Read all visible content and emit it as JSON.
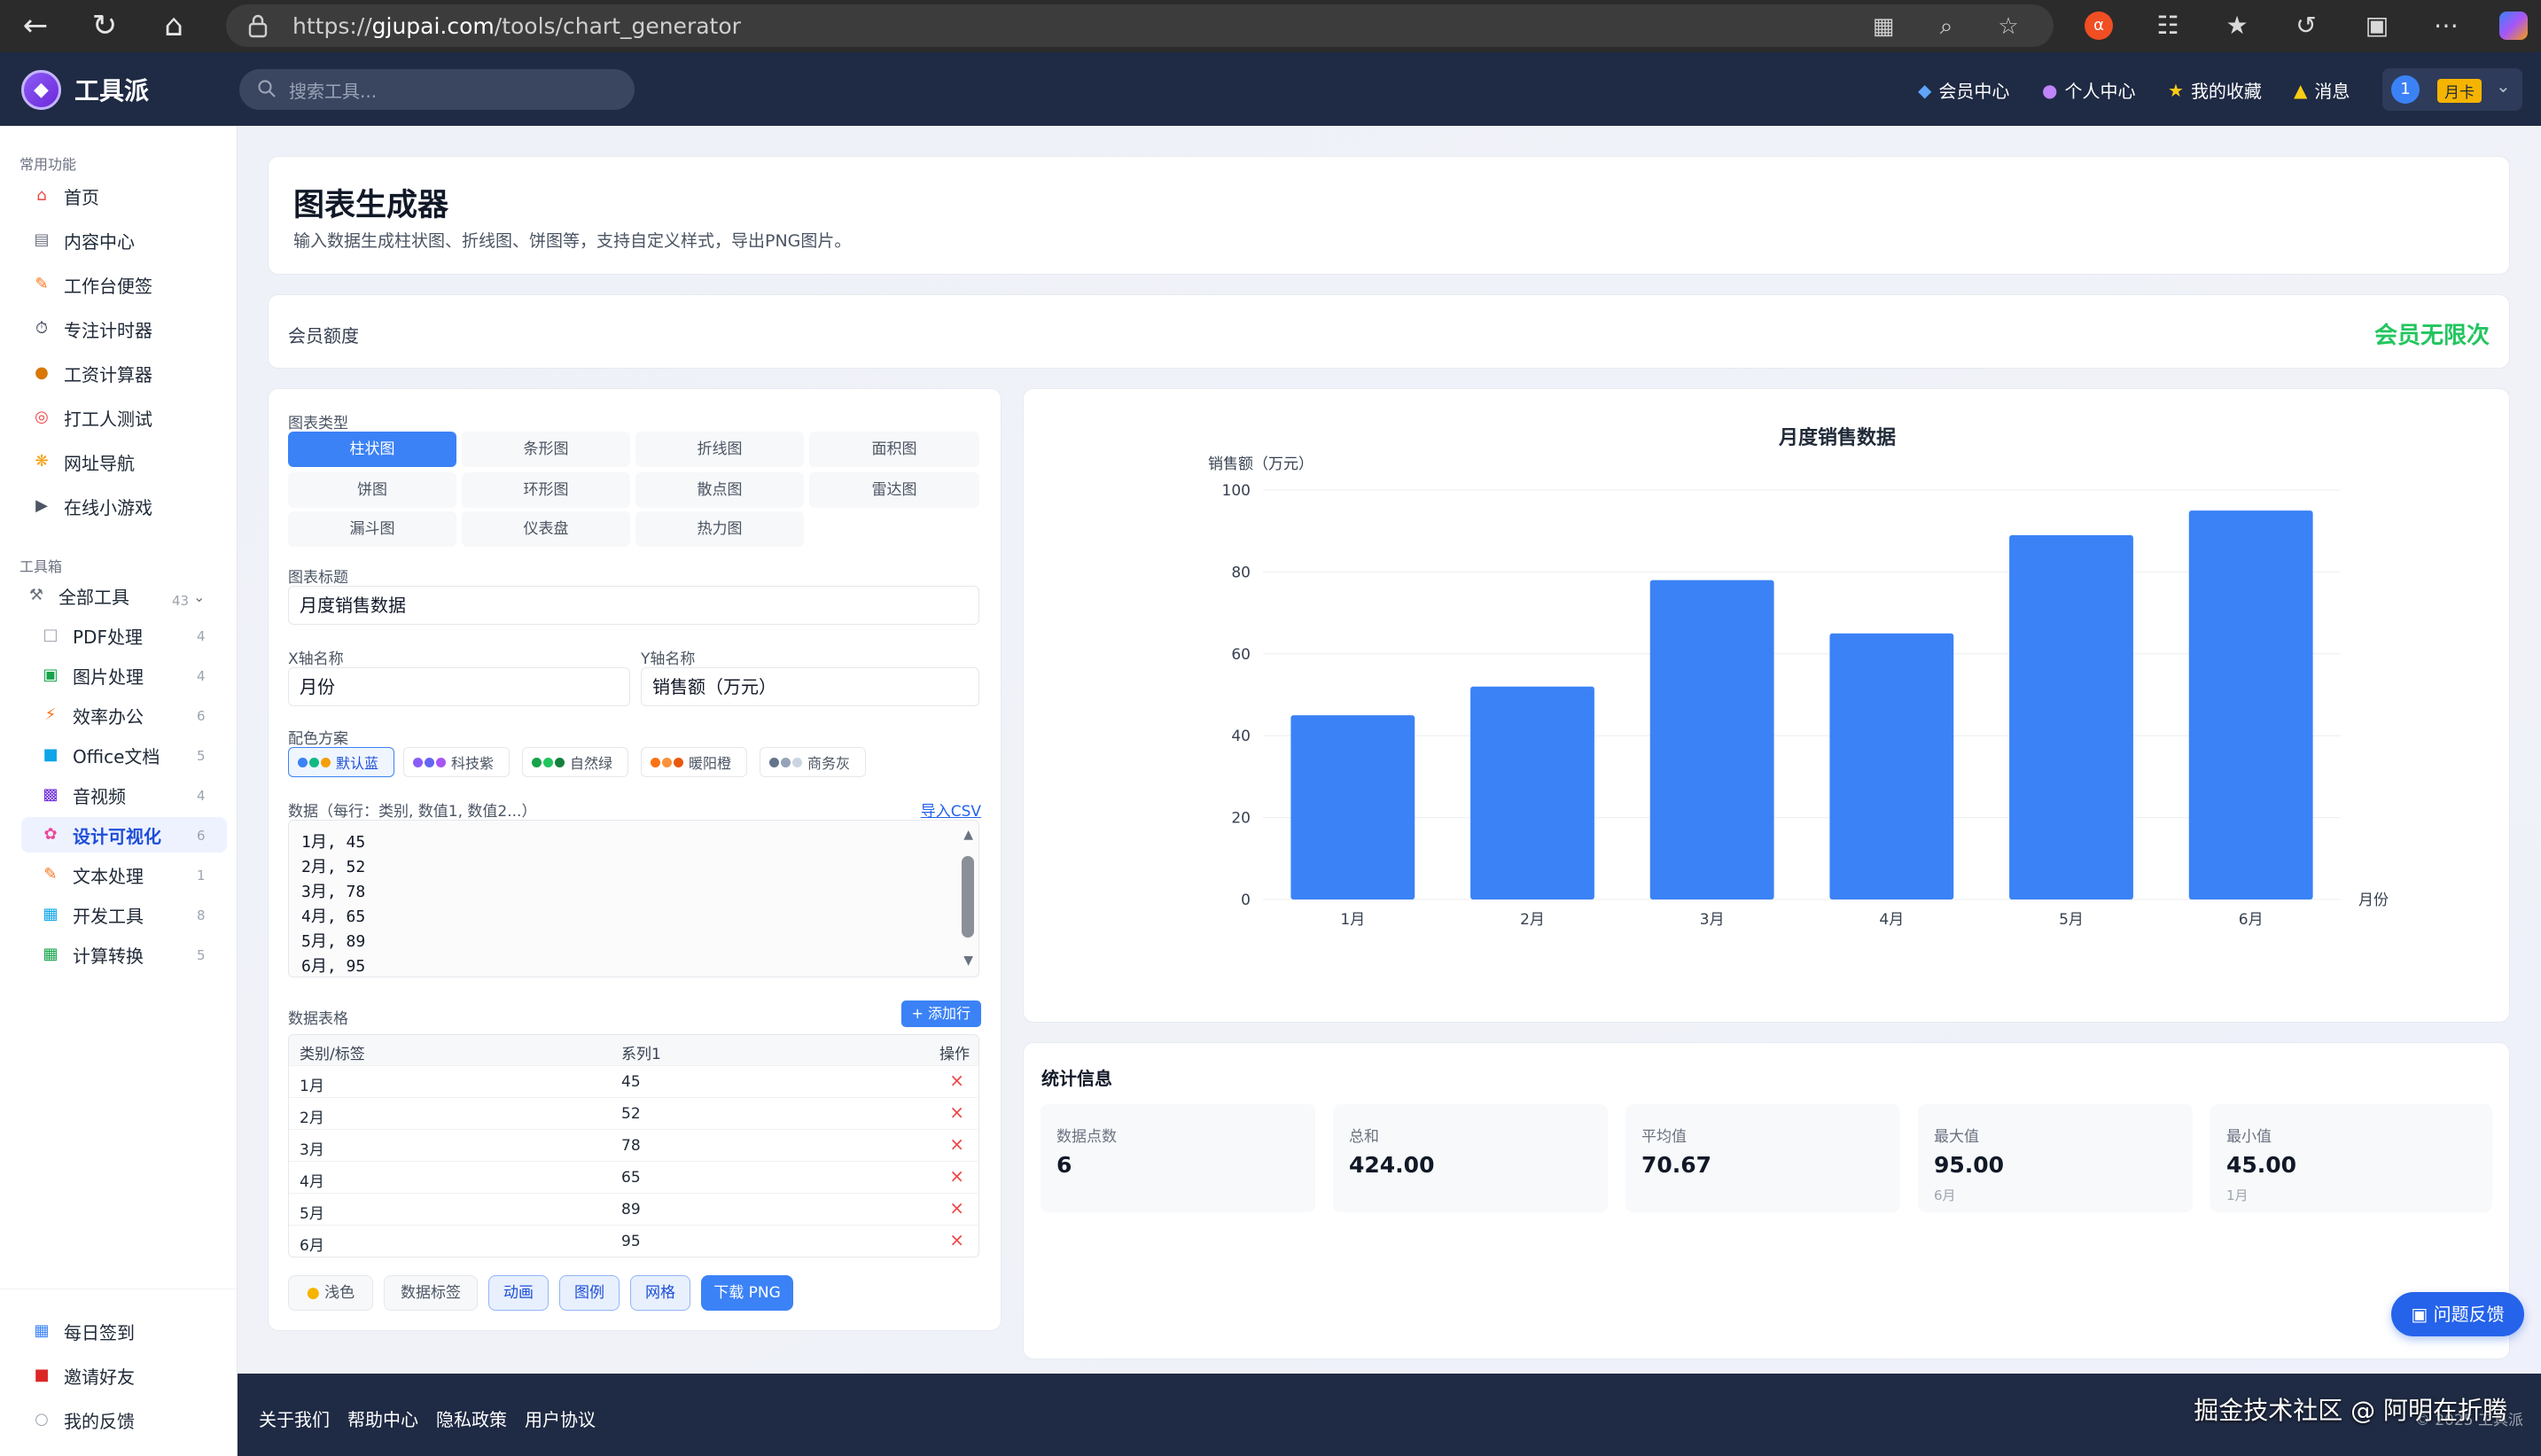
{
  "browser": {
    "url_prefix": "https://",
    "url_host": "gjupai.com",
    "url_path": "/tools/chart_generator"
  },
  "app": {
    "brand": "工具派",
    "search_placeholder": "搜索工具...",
    "nav": {
      "member_center": "会员中心",
      "personal_center": "个人中心",
      "favorites": "我的收藏",
      "messages": "消息"
    },
    "user_badge": "1",
    "user_card": "月卡"
  },
  "sidebar": {
    "common_title": "常用功能",
    "common": [
      {
        "label": "首页",
        "icon": "home-icon"
      },
      {
        "label": "内容中心",
        "icon": "content-icon"
      },
      {
        "label": "工作台便签",
        "icon": "note-icon"
      },
      {
        "label": "专注计时器",
        "icon": "timer-icon"
      },
      {
        "label": "工资计算器",
        "icon": "money-icon"
      },
      {
        "label": "打工人测试",
        "icon": "target-icon"
      },
      {
        "label": "网址导航",
        "icon": "compass-icon"
      },
      {
        "label": "在线小游戏",
        "icon": "gamepad-icon"
      }
    ],
    "toolbox_title": "工具箱",
    "all_tools": {
      "label": "全部工具",
      "count": "43"
    },
    "tools": [
      {
        "label": "PDF处理",
        "count": "4"
      },
      {
        "label": "图片处理",
        "count": "4"
      },
      {
        "label": "效率办公",
        "count": "6"
      },
      {
        "label": "Office文档",
        "count": "5"
      },
      {
        "label": "音视频",
        "count": "4"
      },
      {
        "label": "设计可视化",
        "count": "6"
      },
      {
        "label": "文本处理",
        "count": "1"
      },
      {
        "label": "开发工具",
        "count": "8"
      },
      {
        "label": "计算转换",
        "count": "5"
      }
    ],
    "bottom": [
      {
        "label": "每日签到"
      },
      {
        "label": "邀请好友"
      },
      {
        "label": "我的反馈"
      }
    ]
  },
  "page": {
    "title": "图表生成器",
    "desc": "输入数据生成柱状图、折线图、饼图等，支持自定义样式，导出PNG图片。",
    "quota_label": "会员额度",
    "quota_value": "会员无限次"
  },
  "form": {
    "type_label": "图表类型",
    "types": [
      "柱状图",
      "条形图",
      "折线图",
      "面积图",
      "饼图",
      "环形图",
      "散点图",
      "雷达图",
      "漏斗图",
      "仪表盘",
      "热力图"
    ],
    "title_label": "图表标题",
    "title_value": "月度销售数据",
    "x_label": "X轴名称",
    "x_value": "月份",
    "y_label": "Y轴名称",
    "y_value": "销售额（万元）",
    "scheme_label": "配色方案",
    "schemes": [
      {
        "label": "默认蓝",
        "colors": [
          "#3b82f6",
          "#10b981",
          "#f59e0b"
        ]
      },
      {
        "label": "科技紫",
        "colors": [
          "#8b5cf6",
          "#6366f1",
          "#a855f7"
        ]
      },
      {
        "label": "自然绿",
        "colors": [
          "#16a34a",
          "#22c55e",
          "#15803d"
        ]
      },
      {
        "label": "暖阳橙",
        "colors": [
          "#f97316",
          "#fb923c",
          "#ea580c"
        ]
      },
      {
        "label": "商务灰",
        "colors": [
          "#64748b",
          "#94a3b8",
          "#cbd5e1"
        ]
      }
    ],
    "data_label": "数据（每行：类别, 数值1, 数值2...）",
    "import_csv": "导入CSV",
    "data_lines": [
      "1月, 45",
      "2月, 52",
      "3月, 78",
      "4月, 65",
      "5月, 89",
      "6月, 95"
    ],
    "table_label": "数据表格",
    "add_row": "+ 添加行",
    "table_headers": [
      "类别/标签",
      "系列1",
      "操作"
    ],
    "table_rows": [
      {
        "cat": "1月",
        "val": "45"
      },
      {
        "cat": "2月",
        "val": "52"
      },
      {
        "cat": "3月",
        "val": "78"
      },
      {
        "cat": "4月",
        "val": "65"
      },
      {
        "cat": "5月",
        "val": "89"
      },
      {
        "cat": "6月",
        "val": "95"
      }
    ],
    "buttons": {
      "light": "浅色",
      "data_label": "数据标签",
      "animation": "动画",
      "legend": "图例",
      "grid": "网格",
      "download": "下载 PNG"
    }
  },
  "chart_data": {
    "type": "bar",
    "title": "月度销售数据",
    "ylabel": "销售额（万元）",
    "xlabel": "月份",
    "categories": [
      "1月",
      "2月",
      "3月",
      "4月",
      "5月",
      "6月"
    ],
    "values": [
      45,
      52,
      78,
      65,
      89,
      95
    ],
    "ylim": [
      0,
      100
    ],
    "yticks": [
      "0",
      "20",
      "40",
      "60",
      "80",
      "100"
    ],
    "color": "#3b82f6",
    "grid": true
  },
  "stats": {
    "title": "统计信息",
    "items": [
      {
        "k": "数据点数",
        "v": "6",
        "s": ""
      },
      {
        "k": "总和",
        "v": "424.00",
        "s": ""
      },
      {
        "k": "平均值",
        "v": "70.67",
        "s": ""
      },
      {
        "k": "最大值",
        "v": "95.00",
        "s": "6月"
      },
      {
        "k": "最小值",
        "v": "45.00",
        "s": "1月"
      }
    ]
  },
  "feedback_btn": "问题反馈",
  "footer": {
    "links": [
      "关于我们",
      "帮助中心",
      "隐私政策",
      "用户协议"
    ],
    "watermark": "掘金技术社区 @ 阿明在折腾",
    "copyright": "© 2025 工具派"
  }
}
